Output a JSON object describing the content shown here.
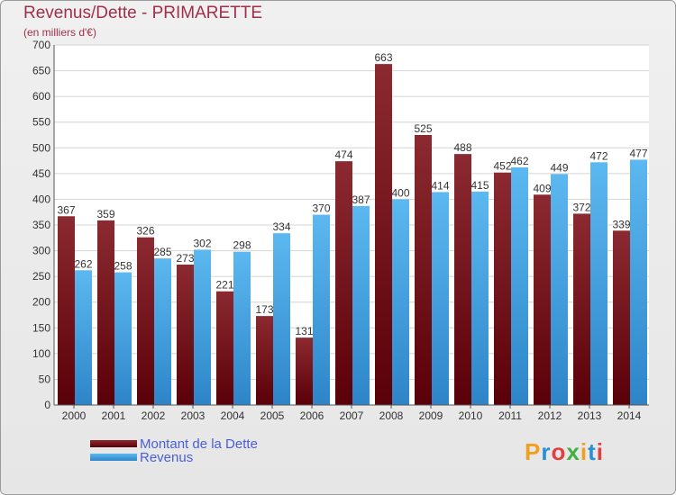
{
  "title": "Revenus/Dette - PRIMARETTE",
  "subtitle": "(en milliers d'€)",
  "colors": {
    "dette": "#6b0f17",
    "revenus": "#3a9fe0"
  },
  "legend": {
    "dette_label": "Montant de la Dette",
    "revenus_label": "Revenus"
  },
  "logo": {
    "letters": [
      "P",
      "r",
      "o",
      "x",
      "i",
      "t",
      "i"
    ],
    "colors": [
      "#f0a020",
      "#2a8fd0",
      "#e04040",
      "#40b040",
      "#f0a020",
      "#2a8fd0",
      "#e04040"
    ]
  },
  "chart_data": {
    "type": "bar",
    "categories": [
      "2000",
      "2001",
      "2002",
      "2003",
      "2004",
      "2005",
      "2006",
      "2007",
      "2008",
      "2009",
      "2010",
      "2011",
      "2012",
      "2013",
      "2014"
    ],
    "series": [
      {
        "name": "Montant de la Dette",
        "values": [
          367,
          359,
          326,
          273,
          221,
          173,
          131,
          474,
          663,
          525,
          488,
          452,
          409,
          372,
          339
        ]
      },
      {
        "name": "Revenus",
        "values": [
          262,
          258,
          285,
          302,
          298,
          334,
          370,
          387,
          400,
          414,
          415,
          462,
          449,
          472,
          477
        ]
      }
    ],
    "ylim": [
      0,
      700
    ],
    "yticks": [
      0,
      50,
      100,
      150,
      200,
      250,
      300,
      350,
      400,
      450,
      500,
      550,
      600,
      650,
      700
    ],
    "grid": true
  }
}
